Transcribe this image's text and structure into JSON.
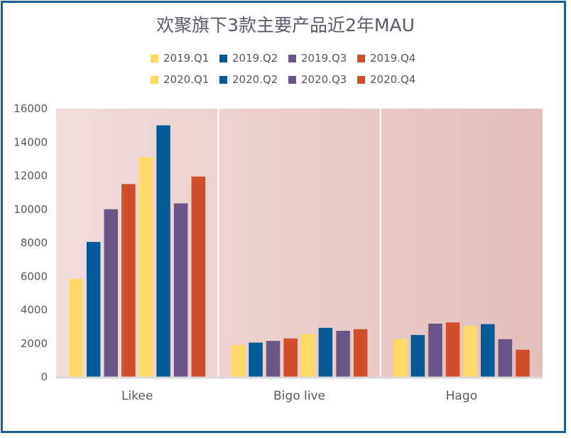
{
  "chart_data": {
    "type": "bar",
    "title": "欢聚旗下3款主要产品近2年MAU",
    "categories": [
      "Likee",
      "Bigo live",
      "Hago"
    ],
    "series": [
      {
        "name": "2019.Q1",
        "color": "#ffd966",
        "values": [
          5850,
          1900,
          2250
        ]
      },
      {
        "name": "2019.Q2",
        "color": "#005b96",
        "values": [
          8050,
          2050,
          2500
        ]
      },
      {
        "name": "2019.Q3",
        "color": "#6a5686",
        "values": [
          10000,
          2150,
          3180
        ]
      },
      {
        "name": "2019.Q4",
        "color": "#d14e2a",
        "values": [
          11500,
          2300,
          3250
        ]
      },
      {
        "name": "2020.Q1",
        "color": "#ffd966",
        "values": [
          13100,
          2550,
          3050
        ]
      },
      {
        "name": "2020.Q2",
        "color": "#005b96",
        "values": [
          15000,
          2930,
          3150
        ]
      },
      {
        "name": "2020.Q3",
        "color": "#6a5686",
        "values": [
          10350,
          2750,
          2250
        ]
      },
      {
        "name": "2020.Q4",
        "color": "#d14e2a",
        "values": [
          11950,
          2850,
          1620
        ]
      }
    ],
    "ylim": [
      0,
      16000
    ],
    "yticks": [
      0,
      2000,
      4000,
      6000,
      8000,
      10000,
      12000,
      14000,
      16000
    ],
    "grid": false,
    "legend": "top"
  }
}
